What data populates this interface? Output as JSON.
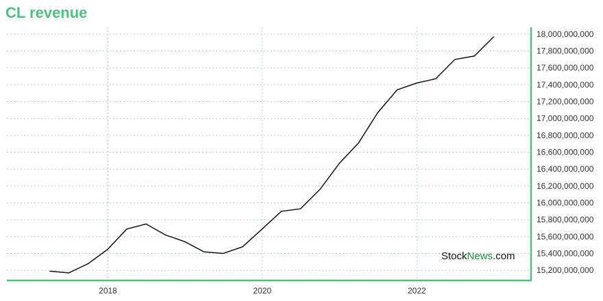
{
  "colors": {
    "accent": "#4dbf7f",
    "line": "#111111",
    "grid": "#a9d6c4",
    "watermark_dark": "#111111",
    "watermark_green": "#1a8f3c"
  },
  "watermark": {
    "part1": "Stock",
    "part2": "News",
    "part3": ".com"
  },
  "chart_data": {
    "type": "line",
    "title": "CL revenue",
    "xlabel": "",
    "ylabel": "",
    "x_ticks": [
      "2018",
      "2020",
      "2022"
    ],
    "y_ticks": [
      15200000000,
      15400000000,
      15600000000,
      15800000000,
      16000000000,
      16200000000,
      16400000000,
      16600000000,
      16800000000,
      17000000000,
      17200000000,
      17400000000,
      17600000000,
      17800000000,
      18000000000
    ],
    "y_tick_labels": [
      "15,200,000,000",
      "15,400,000,000",
      "15,600,000,000",
      "15,800,000,000",
      "16,000,000,000",
      "16,200,000,000",
      "16,400,000,000",
      "16,600,000,000",
      "16,800,000,000",
      "17,000,000,000",
      "17,200,000,000",
      "17,400,000,000",
      "17,600,000,000",
      "17,800,000,000",
      "18,000,000,000"
    ],
    "xlim": [
      "2016-09-10",
      "2023-06-25"
    ],
    "ylim": [
      15080000000,
      18080000000
    ],
    "y_axis_position": "right",
    "grid": true,
    "series": [
      {
        "x": [
          "2017-03-31",
          "2017-06-30",
          "2017-09-30",
          "2017-12-31",
          "2018-03-31",
          "2018-06-30",
          "2018-09-30",
          "2018-12-31",
          "2019-03-31",
          "2019-06-30",
          "2019-09-30",
          "2019-12-31",
          "2020-03-31",
          "2020-06-30",
          "2020-09-30",
          "2020-12-31",
          "2021-03-31",
          "2021-06-30",
          "2021-09-30",
          "2021-12-31",
          "2022-03-31",
          "2022-06-30",
          "2022-09-30",
          "2022-12-31"
        ],
        "values": [
          15190000000,
          15170000000,
          15280000000,
          15450000000,
          15690000000,
          15750000000,
          15620000000,
          15540000000,
          15420000000,
          15400000000,
          15480000000,
          15690000000,
          15900000000,
          15930000000,
          16160000000,
          16470000000,
          16710000000,
          17070000000,
          17340000000,
          17420000000,
          17470000000,
          17700000000,
          17740000000,
          17970000000
        ]
      }
    ]
  }
}
